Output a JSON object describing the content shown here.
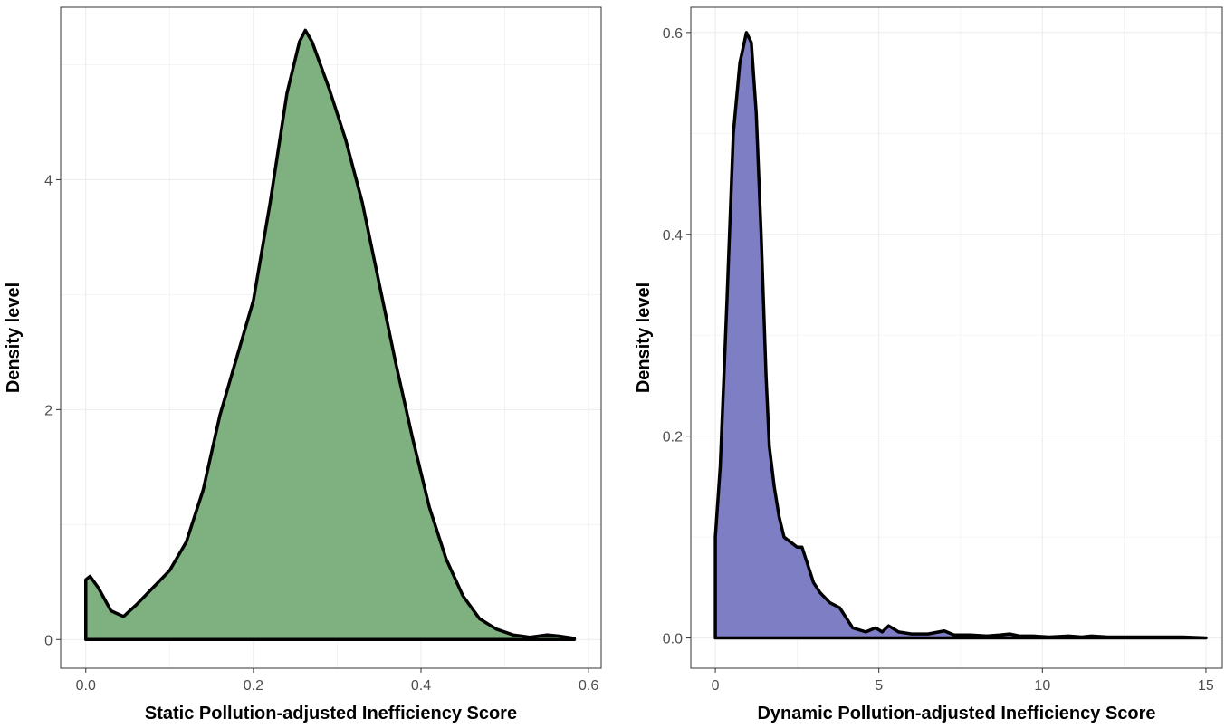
{
  "chart_data": [
    {
      "type": "area",
      "title": "",
      "xlabel": "Static Pollution-adjusted Inefficiency Score",
      "ylabel": "Density level",
      "xlim": [
        -0.03,
        0.615
      ],
      "ylim": [
        -0.25,
        5.5
      ],
      "x_ticks": [
        0.0,
        0.2,
        0.4,
        0.6
      ],
      "x_tick_labels": [
        "0.0",
        "0.2",
        "0.4",
        "0.6"
      ],
      "y_ticks": [
        0,
        2,
        4
      ],
      "y_tick_labels": [
        "0",
        "2",
        "4"
      ],
      "grid": true,
      "fill_color": "#7fb07f",
      "line_color": "#000000",
      "x": [
        0.0,
        0.005,
        0.015,
        0.03,
        0.045,
        0.06,
        0.08,
        0.1,
        0.12,
        0.14,
        0.16,
        0.18,
        0.2,
        0.22,
        0.24,
        0.255,
        0.262,
        0.27,
        0.29,
        0.31,
        0.33,
        0.35,
        0.37,
        0.39,
        0.41,
        0.43,
        0.45,
        0.47,
        0.49,
        0.51,
        0.53,
        0.55,
        0.565,
        0.583
      ],
      "y": [
        0.52,
        0.55,
        0.45,
        0.25,
        0.2,
        0.3,
        0.45,
        0.6,
        0.85,
        1.3,
        1.95,
        2.45,
        2.95,
        3.8,
        4.75,
        5.2,
        5.3,
        5.2,
        4.8,
        4.35,
        3.8,
        3.1,
        2.4,
        1.75,
        1.15,
        0.7,
        0.38,
        0.18,
        0.09,
        0.04,
        0.02,
        0.04,
        0.03,
        0.01
      ]
    },
    {
      "type": "area",
      "title": "",
      "xlabel": "Dynamic Pollution-adjusted Inefficiency Score",
      "ylabel": "Density level",
      "xlim": [
        -0.75,
        15.5
      ],
      "ylim": [
        -0.03,
        0.625
      ],
      "x_ticks": [
        0,
        5,
        10,
        15
      ],
      "x_tick_labels": [
        "0",
        "5",
        "10",
        "15"
      ],
      "y_ticks": [
        0.0,
        0.2,
        0.4,
        0.6
      ],
      "y_tick_labels": [
        "0.0",
        "0.2",
        "0.4",
        "0.6"
      ],
      "grid": true,
      "fill_color": "#7e7ec4",
      "line_color": "#000000",
      "x": [
        0.0,
        0.15,
        0.35,
        0.55,
        0.75,
        0.95,
        1.1,
        1.25,
        1.4,
        1.55,
        1.65,
        1.8,
        1.95,
        2.1,
        2.3,
        2.5,
        2.65,
        2.8,
        3.0,
        3.2,
        3.5,
        3.8,
        4.2,
        4.6,
        4.9,
        5.1,
        5.3,
        5.6,
        6.0,
        6.5,
        7.0,
        7.3,
        7.8,
        8.3,
        8.7,
        9.0,
        9.3,
        9.7,
        10.2,
        10.8,
        11.2,
        11.5,
        12.0,
        12.8,
        13.5,
        14.3,
        15.0
      ],
      "y": [
        0.1,
        0.17,
        0.33,
        0.5,
        0.57,
        0.6,
        0.59,
        0.52,
        0.4,
        0.26,
        0.19,
        0.15,
        0.12,
        0.1,
        0.095,
        0.09,
        0.09,
        0.075,
        0.055,
        0.045,
        0.035,
        0.03,
        0.01,
        0.006,
        0.01,
        0.006,
        0.012,
        0.006,
        0.004,
        0.004,
        0.007,
        0.003,
        0.003,
        0.002,
        0.003,
        0.004,
        0.002,
        0.002,
        0.001,
        0.002,
        0.001,
        0.002,
        0.001,
        0.001,
        0.001,
        0.001,
        0.0
      ]
    }
  ]
}
